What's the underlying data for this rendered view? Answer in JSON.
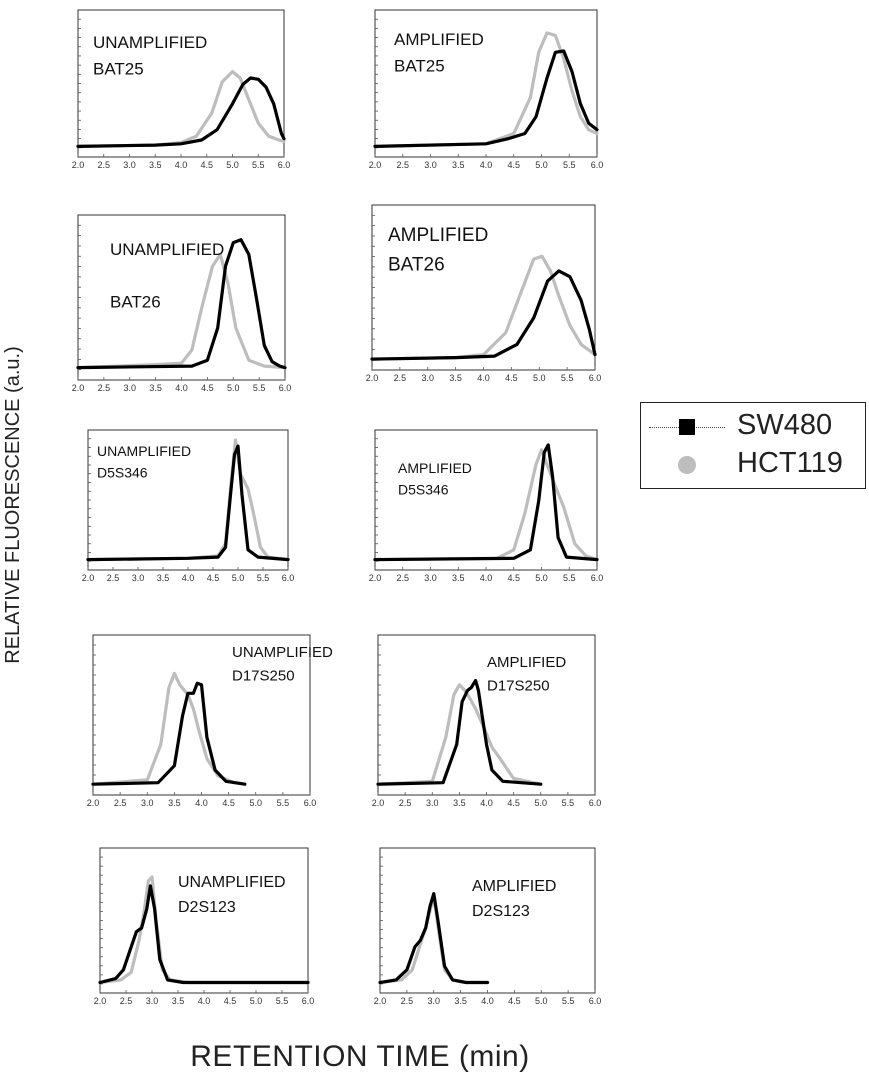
{
  "figure": {
    "ylabel": "RELATIVE FLUORESCENCE (a.u.)",
    "xlabel": "RETENTION TIME (min)"
  },
  "legend": {
    "position": "right",
    "items": [
      {
        "label": "SW480",
        "color": "#000000",
        "marker": "square"
      },
      {
        "label": "HCT119",
        "color": "#bdbdbd",
        "marker": "circle"
      }
    ]
  },
  "chart_data": [
    {
      "type": "line",
      "label_lines": [
        "UNAMPLIFIED",
        "BAT25"
      ],
      "xlim": [
        2.0,
        6.0
      ],
      "xticks": [
        "2.0",
        "2.5",
        "3.0",
        "3.5",
        "4.0",
        "4.5",
        "5.0",
        "5.5",
        "6.0"
      ],
      "series": [
        {
          "name": "SW480",
          "color": "#000000",
          "x": [
            2.0,
            3.5,
            4.0,
            4.4,
            4.7,
            5.0,
            5.2,
            5.35,
            5.5,
            5.65,
            5.8,
            5.95,
            6.0
          ],
          "y": [
            0.02,
            0.03,
            0.04,
            0.07,
            0.15,
            0.35,
            0.5,
            0.55,
            0.54,
            0.48,
            0.35,
            0.12,
            0.08
          ]
        },
        {
          "name": "HCT119",
          "color": "#bdbdbd",
          "x": [
            2.0,
            3.5,
            4.0,
            4.3,
            4.6,
            4.8,
            5.0,
            5.15,
            5.3,
            5.5,
            5.7,
            5.9,
            6.0
          ],
          "y": [
            0.02,
            0.03,
            0.05,
            0.1,
            0.28,
            0.52,
            0.6,
            0.55,
            0.4,
            0.2,
            0.1,
            0.07,
            0.06
          ]
        }
      ]
    },
    {
      "type": "line",
      "label_lines": [
        "AMPLIFIED",
        "BAT25"
      ],
      "xlim": [
        2.0,
        6.0
      ],
      "xticks": [
        "2.0",
        "2.5",
        "3.0",
        "3.5",
        "4.0",
        "4.5",
        "5.0",
        "5.5",
        "6.0"
      ],
      "series": [
        {
          "name": "SW480",
          "color": "#000000",
          "x": [
            2.0,
            4.0,
            4.4,
            4.7,
            4.9,
            5.1,
            5.25,
            5.4,
            5.55,
            5.7,
            5.85,
            6.0
          ],
          "y": [
            0.02,
            0.04,
            0.08,
            0.12,
            0.25,
            0.55,
            0.75,
            0.76,
            0.6,
            0.35,
            0.2,
            0.15
          ]
        },
        {
          "name": "HCT119",
          "color": "#bdbdbd",
          "x": [
            2.0,
            4.0,
            4.5,
            4.8,
            4.95,
            5.1,
            5.25,
            5.4,
            5.55,
            5.7,
            5.85,
            6.0
          ],
          "y": [
            0.02,
            0.04,
            0.12,
            0.4,
            0.75,
            0.9,
            0.88,
            0.7,
            0.45,
            0.25,
            0.15,
            0.12
          ]
        }
      ]
    },
    {
      "type": "line",
      "label_lines": [
        "UNAMPLIFIED",
        "",
        "BAT26"
      ],
      "xlim": [
        2.0,
        6.0
      ],
      "xticks": [
        "2.0",
        "2.5",
        "3.0",
        "3.5",
        "4.0",
        "4.5",
        "5.0",
        "5.5",
        "6.0"
      ],
      "series": [
        {
          "name": "SW480",
          "color": "#000000",
          "x": [
            2.0,
            4.2,
            4.5,
            4.7,
            4.85,
            5.0,
            5.15,
            5.3,
            5.45,
            5.6,
            5.75,
            5.9,
            6.0
          ],
          "y": [
            0.03,
            0.04,
            0.08,
            0.3,
            0.72,
            0.88,
            0.9,
            0.8,
            0.5,
            0.18,
            0.07,
            0.04,
            0.03
          ]
        },
        {
          "name": "HCT119",
          "color": "#bdbdbd",
          "x": [
            2.0,
            3.5,
            4.0,
            4.2,
            4.4,
            4.6,
            4.75,
            4.9,
            5.05,
            5.3,
            5.6,
            6.0
          ],
          "y": [
            0.03,
            0.05,
            0.06,
            0.15,
            0.45,
            0.72,
            0.8,
            0.6,
            0.3,
            0.08,
            0.04,
            0.03
          ]
        }
      ]
    },
    {
      "type": "line",
      "label_lines": [
        "AMPLIFIED",
        "BAT26"
      ],
      "xlim": [
        2.0,
        6.0
      ],
      "xticks": [
        "2.0",
        "2.5",
        "3.0",
        "3.5",
        "4.0",
        "4.5",
        "5.0",
        "5.5",
        "6.0"
      ],
      "series": [
        {
          "name": "SW480",
          "color": "#000000",
          "x": [
            2.0,
            3.5,
            4.2,
            4.6,
            4.9,
            5.15,
            5.35,
            5.55,
            5.75,
            5.9,
            6.0
          ],
          "y": [
            0.02,
            0.03,
            0.04,
            0.12,
            0.3,
            0.55,
            0.62,
            0.58,
            0.42,
            0.22,
            0.05
          ]
        },
        {
          "name": "HCT119",
          "color": "#bdbdbd",
          "x": [
            2.0,
            3.5,
            4.0,
            4.4,
            4.7,
            4.9,
            5.05,
            5.2,
            5.35,
            5.55,
            5.75,
            6.0
          ],
          "y": [
            0.02,
            0.03,
            0.05,
            0.2,
            0.5,
            0.7,
            0.72,
            0.62,
            0.45,
            0.25,
            0.12,
            0.05
          ]
        }
      ]
    },
    {
      "type": "line",
      "label_lines": [
        "UNAMPLIFIED",
        "D5S346"
      ],
      "xlim": [
        2.0,
        6.0
      ],
      "xticks": [
        "2.0",
        "2.5",
        "3.0",
        "3.5",
        "4.0",
        "4.5",
        "5.0",
        "5.5",
        "6.0"
      ],
      "series": [
        {
          "name": "SW480",
          "color": "#000000",
          "x": [
            2.0,
            4.0,
            4.6,
            4.75,
            4.85,
            4.93,
            5.0,
            5.08,
            5.2,
            5.4,
            6.0
          ],
          "y": [
            0.02,
            0.03,
            0.04,
            0.12,
            0.55,
            0.88,
            0.95,
            0.55,
            0.1,
            0.04,
            0.02
          ]
        },
        {
          "name": "HCT119",
          "color": "#bdbdbd",
          "x": [
            2.0,
            4.0,
            4.6,
            4.75,
            4.85,
            4.95,
            5.05,
            5.2,
            5.3,
            5.45,
            5.6,
            6.0
          ],
          "y": [
            0.02,
            0.03,
            0.05,
            0.15,
            0.6,
            1.0,
            0.72,
            0.6,
            0.42,
            0.12,
            0.04,
            0.02
          ]
        }
      ]
    },
    {
      "type": "line",
      "label_lines": [
        "AMPLIFIED",
        "D5S346"
      ],
      "xlim": [
        2.0,
        6.0
      ],
      "xticks": [
        "2.0",
        "2.5",
        "3.0",
        "3.5",
        "4.0",
        "4.5",
        "5.0",
        "5.5",
        "6.0"
      ],
      "series": [
        {
          "name": "SW480",
          "color": "#000000",
          "x": [
            2.0,
            4.5,
            4.8,
            4.95,
            5.05,
            5.12,
            5.2,
            5.3,
            5.45,
            6.0
          ],
          "y": [
            0.02,
            0.03,
            0.1,
            0.5,
            0.9,
            0.96,
            0.7,
            0.2,
            0.04,
            0.02
          ]
        },
        {
          "name": "HCT119",
          "color": "#bdbdbd",
          "x": [
            2.0,
            4.2,
            4.5,
            4.7,
            4.9,
            5.0,
            5.1,
            5.25,
            5.4,
            5.6,
            5.8,
            6.0
          ],
          "y": [
            0.02,
            0.03,
            0.1,
            0.4,
            0.8,
            0.92,
            0.8,
            0.62,
            0.45,
            0.15,
            0.05,
            0.02
          ]
        }
      ]
    },
    {
      "type": "line",
      "label_lines": [
        "UNAMPLIFIED",
        "D17S250"
      ],
      "xlim": [
        2.0,
        6.0
      ],
      "xticks": [
        "2.0",
        "2.5",
        "3.0",
        "3.5",
        "4.0",
        "4.5",
        "5.0",
        "5.5",
        "6.0"
      ],
      "series": [
        {
          "name": "SW480",
          "color": "#000000",
          "x": [
            2.0,
            3.2,
            3.5,
            3.65,
            3.75,
            3.85,
            3.92,
            4.0,
            4.1,
            4.25,
            4.45,
            4.8
          ],
          "y": [
            0.02,
            0.03,
            0.15,
            0.5,
            0.66,
            0.66,
            0.73,
            0.72,
            0.35,
            0.12,
            0.04,
            0.02
          ]
        },
        {
          "name": "HCT119",
          "color": "#bdbdbd",
          "x": [
            2.0,
            3.0,
            3.25,
            3.4,
            3.5,
            3.6,
            3.75,
            3.85,
            3.95,
            4.1,
            4.3,
            4.6
          ],
          "y": [
            0.02,
            0.05,
            0.3,
            0.7,
            0.8,
            0.72,
            0.65,
            0.55,
            0.4,
            0.2,
            0.08,
            0.03
          ]
        }
      ]
    },
    {
      "type": "line",
      "label_lines": [
        "AMPLIFIED",
        "D17S250"
      ],
      "xlim": [
        2.0,
        6.0
      ],
      "xticks": [
        "2.0",
        "2.5",
        "3.0",
        "3.5",
        "4.0",
        "4.5",
        "5.0",
        "5.5",
        "6.0"
      ],
      "series": [
        {
          "name": "SW480",
          "color": "#000000",
          "x": [
            2.0,
            3.2,
            3.45,
            3.55,
            3.65,
            3.72,
            3.8,
            3.85,
            3.92,
            4.0,
            4.1,
            4.3,
            5.0
          ],
          "y": [
            0.02,
            0.03,
            0.3,
            0.6,
            0.68,
            0.7,
            0.75,
            0.68,
            0.5,
            0.3,
            0.12,
            0.04,
            0.02
          ]
        },
        {
          "name": "HCT119",
          "color": "#bdbdbd",
          "x": [
            2.0,
            3.0,
            3.25,
            3.4,
            3.5,
            3.6,
            3.7,
            3.8,
            3.95,
            4.1,
            4.25,
            4.5,
            5.0
          ],
          "y": [
            0.02,
            0.04,
            0.35,
            0.65,
            0.72,
            0.68,
            0.62,
            0.55,
            0.42,
            0.28,
            0.2,
            0.06,
            0.02
          ]
        }
      ]
    },
    {
      "type": "line",
      "label_lines": [
        "UNAMPLIFIED",
        "D2S123"
      ],
      "xlim": [
        2.0,
        6.0
      ],
      "xticks": [
        "2.0",
        "2.5",
        "3.0",
        "3.5",
        "4.0",
        "4.5",
        "5.0",
        "5.5",
        "6.0"
      ],
      "series": [
        {
          "name": "SW480",
          "color": "#000000",
          "x": [
            2.0,
            2.3,
            2.45,
            2.6,
            2.7,
            2.8,
            2.9,
            2.97,
            3.05,
            3.15,
            3.3,
            3.6,
            6.0
          ],
          "y": [
            0.02,
            0.05,
            0.12,
            0.3,
            0.42,
            0.45,
            0.6,
            0.78,
            0.6,
            0.2,
            0.04,
            0.02,
            0.02
          ]
        },
        {
          "name": "HCT119",
          "color": "#bdbdbd",
          "x": [
            2.0,
            2.4,
            2.6,
            2.75,
            2.85,
            2.93,
            3.0,
            3.08,
            3.2,
            3.35,
            3.7,
            6.0
          ],
          "y": [
            0.02,
            0.04,
            0.1,
            0.35,
            0.58,
            0.82,
            0.85,
            0.5,
            0.12,
            0.04,
            0.02,
            0.02
          ]
        }
      ]
    },
    {
      "type": "line",
      "label_lines": [
        "AMPLIFIED",
        "D2S123"
      ],
      "xlim": [
        2.0,
        6.0
      ],
      "xticks": [
        "2.0",
        "2.5",
        "3.0",
        "3.5",
        "4.0",
        "4.5",
        "5.0",
        "5.5",
        "6.0"
      ],
      "series": [
        {
          "name": "SW480",
          "color": "#000000",
          "x": [
            2.0,
            2.3,
            2.5,
            2.65,
            2.75,
            2.85,
            2.93,
            3.0,
            3.08,
            3.2,
            3.35,
            3.6,
            4.0
          ],
          "y": [
            0.02,
            0.04,
            0.12,
            0.3,
            0.35,
            0.45,
            0.62,
            0.72,
            0.5,
            0.15,
            0.04,
            0.02,
            0.02
          ]
        },
        {
          "name": "HCT119",
          "color": "#bdbdbd",
          "x": [
            2.0,
            2.4,
            2.6,
            2.75,
            2.85,
            2.95,
            3.02,
            3.1,
            3.2,
            3.35,
            3.6,
            4.0
          ],
          "y": [
            0.02,
            0.04,
            0.12,
            0.32,
            0.45,
            0.62,
            0.65,
            0.4,
            0.12,
            0.04,
            0.02,
            0.02
          ]
        }
      ]
    }
  ]
}
